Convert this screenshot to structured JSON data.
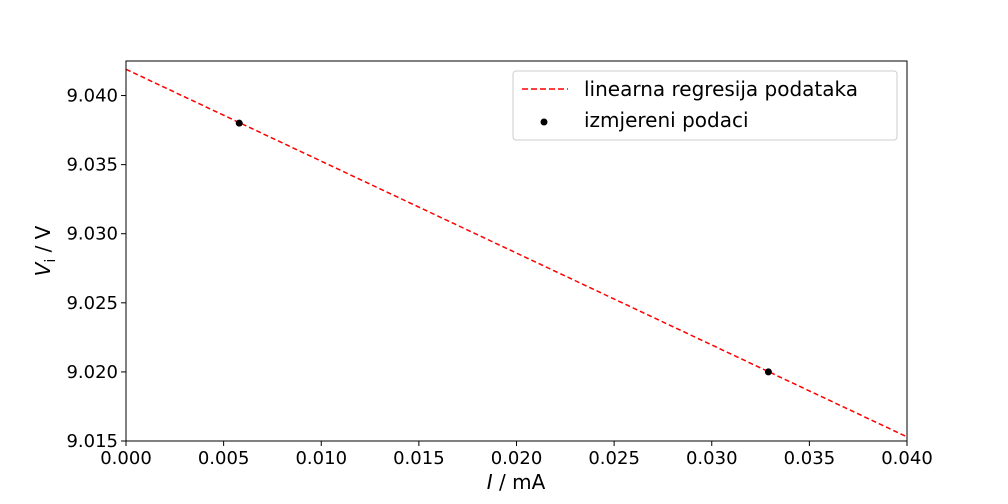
{
  "chart_data": {
    "type": "scatter",
    "x_axis": {
      "label_symbol": "I",
      "label_unit": " / mA",
      "lim": [
        0.0,
        0.04
      ],
      "ticks": [
        0.0,
        0.005,
        0.01,
        0.015,
        0.02,
        0.025,
        0.03,
        0.035,
        0.04
      ],
      "tick_labels": [
        "0.000",
        "0.005",
        "0.010",
        "0.015",
        "0.020",
        "0.025",
        "0.030",
        "0.035",
        "0.040"
      ]
    },
    "y_axis": {
      "label_symbol": "V",
      "label_subscript": "i",
      "label_unit": " / V",
      "lim": [
        9.015,
        9.0425
      ],
      "ticks": [
        9.015,
        9.02,
        9.025,
        9.03,
        9.035,
        9.04
      ],
      "tick_labels": [
        "9.015",
        "9.020",
        "9.025",
        "9.030",
        "9.035",
        "9.040"
      ]
    },
    "series": [
      {
        "name": "linearna regresija podataka",
        "kind": "line",
        "style": "dashed",
        "color": "#ff0000",
        "x": [
          0.0,
          0.04
        ],
        "y": [
          9.0419,
          9.0153
        ]
      },
      {
        "name": "izmjereni podaci",
        "kind": "scatter",
        "color": "#000000",
        "x": [
          0.0058,
          0.0329
        ],
        "y": [
          9.038,
          9.02
        ]
      }
    ],
    "legend": {
      "position": "upper-right",
      "entries": [
        "linearna regresija podataka",
        "izmjereni podaci"
      ]
    },
    "grid": false
  }
}
